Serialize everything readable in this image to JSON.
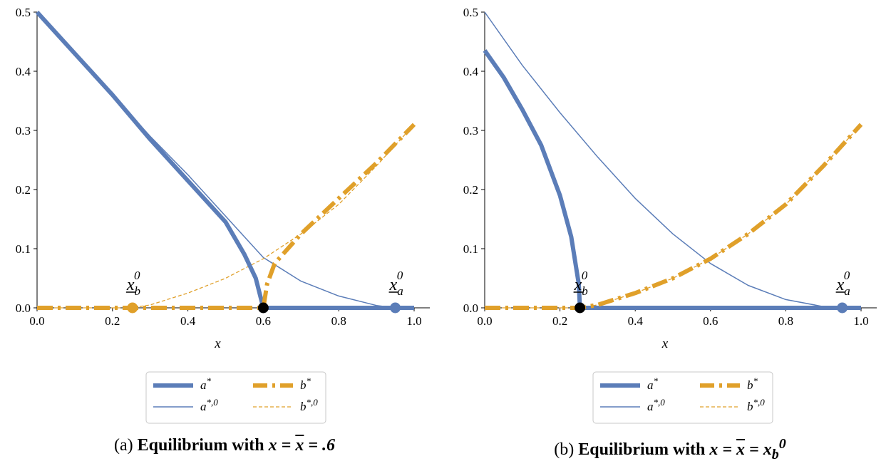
{
  "colors": {
    "a": "#5b7db8",
    "b": "#e0a02a",
    "eq": "#000000"
  },
  "chart_data": [
    {
      "type": "line",
      "caption_prefix": "(a)",
      "caption_title": "Equilibrium with",
      "caption_math": "x = x̄ = .6",
      "xlabel": "x",
      "xlim": [
        0,
        1.0
      ],
      "ylim": [
        0,
        0.5
      ],
      "xticks": [
        "0.0",
        "0.2",
        "0.4",
        "0.6",
        "0.8",
        "1.0"
      ],
      "yticks": [
        "0.0",
        "0.1",
        "0.2",
        "0.3",
        "0.4",
        "0.5"
      ],
      "legend": [
        "a*",
        "b*",
        "a*,0",
        "b*,0"
      ],
      "series": [
        {
          "name": "a*",
          "style": "thick-solid",
          "color": "#5b7db8",
          "x": [
            0,
            0.1,
            0.2,
            0.3,
            0.4,
            0.5,
            0.55,
            0.58,
            0.6,
            1.0
          ],
          "y": [
            0.5,
            0.43,
            0.36,
            0.285,
            0.215,
            0.145,
            0.09,
            0.05,
            0.0,
            0.0
          ]
        },
        {
          "name": "b*",
          "style": "thick-dashed",
          "color": "#e0a02a",
          "x": [
            0,
            0.6,
            0.61,
            0.63,
            0.7,
            0.8,
            0.9,
            1.0
          ],
          "y": [
            0,
            0,
            0.04,
            0.075,
            0.125,
            0.185,
            0.245,
            0.31
          ]
        },
        {
          "name": "a*,0",
          "style": "thin-solid",
          "color": "#5b7db8",
          "x": [
            0,
            0.1,
            0.2,
            0.3,
            0.4,
            0.5,
            0.6,
            0.7,
            0.8,
            0.9,
            0.95,
            1.0
          ],
          "y": [
            0.5,
            0.43,
            0.36,
            0.29,
            0.225,
            0.155,
            0.085,
            0.045,
            0.02,
            0.004,
            0,
            0
          ]
        },
        {
          "name": "b*,0",
          "style": "thin-dashed",
          "color": "#e0a02a",
          "x": [
            0,
            0.25,
            0.3,
            0.4,
            0.5,
            0.6,
            0.7,
            0.8,
            0.9,
            1.0
          ],
          "y": [
            0,
            0,
            0.005,
            0.025,
            0.05,
            0.083,
            0.125,
            0.175,
            0.24,
            0.31
          ]
        }
      ],
      "markers": [
        {
          "x": 0.253,
          "y": 0,
          "color": "#e0a02a",
          "label": "x_b^0"
        },
        {
          "x": 0.95,
          "y": 0,
          "color": "#5b7db8",
          "label": "x_a^0"
        },
        {
          "x": 0.6,
          "y": 0,
          "color": "#000000",
          "label": ""
        }
      ]
    },
    {
      "type": "line",
      "caption_prefix": "(b)",
      "caption_title": "Equilibrium with",
      "caption_math": "x = x̄ = x_b^0",
      "xlabel": "x",
      "xlim": [
        0,
        1.0
      ],
      "ylim": [
        0,
        0.5
      ],
      "xticks": [
        "0.0",
        "0.2",
        "0.4",
        "0.6",
        "0.8",
        "1.0"
      ],
      "yticks": [
        "0.0",
        "0.1",
        "0.2",
        "0.3",
        "0.4",
        "0.5"
      ],
      "legend": [
        "a*",
        "b*",
        "a*,0",
        "b*,0"
      ],
      "series": [
        {
          "name": "a*",
          "style": "thick-solid",
          "color": "#5b7db8",
          "x": [
            0,
            0.05,
            0.1,
            0.15,
            0.2,
            0.23,
            0.25,
            0.253,
            1.0
          ],
          "y": [
            0.435,
            0.39,
            0.335,
            0.275,
            0.19,
            0.12,
            0.04,
            0.0,
            0.0
          ]
        },
        {
          "name": "b*",
          "style": "thick-dashed",
          "color": "#e0a02a",
          "x": [
            0,
            0.253,
            0.3,
            0.4,
            0.5,
            0.6,
            0.7,
            0.8,
            0.9,
            1.0
          ],
          "y": [
            0,
            0,
            0.005,
            0.025,
            0.05,
            0.083,
            0.125,
            0.175,
            0.24,
            0.31
          ]
        },
        {
          "name": "a*,0",
          "style": "thin-solid",
          "color": "#5b7db8",
          "x": [
            0,
            0.1,
            0.2,
            0.3,
            0.4,
            0.5,
            0.6,
            0.7,
            0.8,
            0.9,
            0.95,
            1.0
          ],
          "y": [
            0.5,
            0.41,
            0.33,
            0.255,
            0.185,
            0.125,
            0.075,
            0.038,
            0.014,
            0.002,
            0,
            0
          ]
        },
        {
          "name": "b*,0",
          "style": "thin-dashed",
          "color": "#e0a02a",
          "x": [
            0,
            0.253,
            0.3,
            0.4,
            0.5,
            0.6,
            0.7,
            0.8,
            0.9,
            1.0
          ],
          "y": [
            0,
            0,
            0.005,
            0.025,
            0.05,
            0.083,
            0.125,
            0.175,
            0.24,
            0.31
          ]
        }
      ],
      "markers": [
        {
          "x": 0.95,
          "y": 0,
          "color": "#5b7db8",
          "label": "x_a^0"
        },
        {
          "x": 0.253,
          "y": 0,
          "color": "#000000",
          "label": "x_b^0"
        }
      ]
    }
  ]
}
